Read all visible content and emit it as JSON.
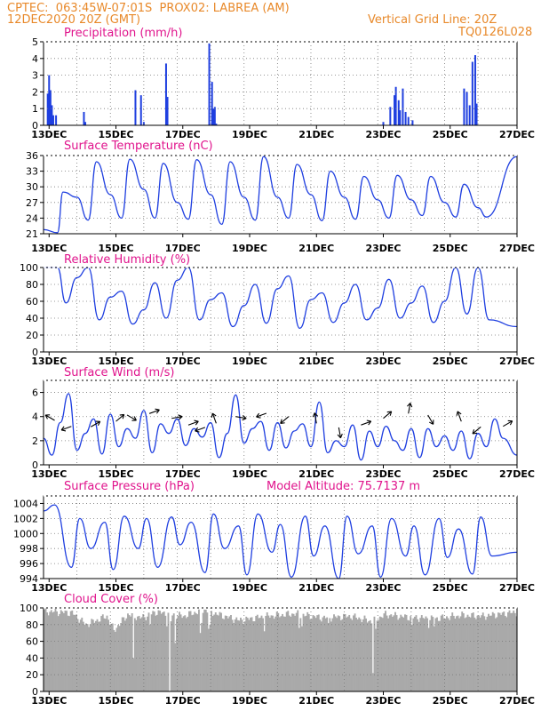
{
  "header": {
    "line1": "CPTEC:  063:45W-07:01S  PROX02: LABREA (AM)",
    "line2": "12DEC2020 20Z (GMT)",
    "grid_note": "Vertical Grid Line: 20Z",
    "code": "TQ0126L028"
  },
  "colors": {
    "header": "#e8892a",
    "title": "#e0138c",
    "series": "#1f3fe0",
    "cloud": "#a9a9a9"
  },
  "x_ticks": [
    "13DEC",
    "15DEC",
    "17DEC",
    "19DEC",
    "21DEC",
    "23DEC",
    "25DEC",
    "27DEC"
  ],
  "model_altitude": "Model Altitude: 75.7137 m",
  "chart_data": [
    {
      "id": "precip",
      "type": "bar",
      "title": "Precipitation (mm/h)",
      "ylim": [
        0,
        5
      ],
      "yticks": [
        "0",
        "1",
        "2",
        "3",
        "4",
        "5"
      ],
      "x_range": [
        "12DEC2020 20Z",
        "27DEC2020 00Z"
      ],
      "x_hours_from_start": [
        3,
        4,
        5,
        6,
        7,
        9,
        29,
        30,
        66,
        70,
        72,
        88,
        89,
        119,
        121,
        122,
        123,
        124,
        244,
        249,
        252,
        253,
        255,
        256,
        258,
        260,
        262,
        265,
        302,
        304,
        306,
        308,
        310,
        311
      ],
      "values": [
        1.9,
        3.0,
        2.1,
        1.2,
        0.6,
        0.6,
        0.8,
        0.2,
        2.1,
        1.8,
        0.2,
        3.7,
        1.7,
        4.9,
        2.6,
        1.0,
        1.1,
        0.1,
        0.2,
        1.1,
        1.8,
        2.3,
        1.5,
        0.9,
        2.2,
        0.8,
        0.5,
        0.3,
        2.2,
        2.0,
        1.2,
        3.8,
        4.2,
        1.3
      ]
    },
    {
      "id": "temp",
      "type": "line",
      "title": "Surface Temperature (nC)",
      "ylim": [
        21,
        36
      ],
      "yticks": [
        "21",
        "24",
        "27",
        "30",
        "33",
        "36"
      ],
      "x_range": [
        "12DEC2020 20Z",
        "27DEC2020 00Z"
      ],
      "x_hours_from_start": [
        0,
        10,
        14,
        24,
        32,
        38,
        48,
        56,
        62,
        72,
        80,
        86,
        96,
        104,
        110,
        120,
        128,
        134,
        144,
        152,
        158,
        168,
        176,
        182,
        192,
        200,
        206,
        216,
        224,
        230,
        240,
        248,
        254,
        264,
        272,
        278,
        288,
        296,
        302,
        312,
        318,
        340
      ],
      "values": [
        21.8,
        21.2,
        29.0,
        28.0,
        23.6,
        34.8,
        28.5,
        24.0,
        35.3,
        29.5,
        24.0,
        34.5,
        27.0,
        23.8,
        35.2,
        28.5,
        22.8,
        34.8,
        28.0,
        23.6,
        35.8,
        28.0,
        24.0,
        34.3,
        28.5,
        23.5,
        33.0,
        28.0,
        23.8,
        32.0,
        27.5,
        24.0,
        32.2,
        27.5,
        24.5,
        32.0,
        27.0,
        24.2,
        30.5,
        26.0,
        24.2,
        35.8
      ]
    },
    {
      "id": "rh",
      "type": "line",
      "title": "Relative Humidity (%)",
      "ylim": [
        0,
        100
      ],
      "yticks": [
        "0",
        "20",
        "40",
        "60",
        "80",
        "100"
      ],
      "x_range": [
        "12DEC2020 20Z",
        "27DEC2020 00Z"
      ],
      "x_hours_from_start": [
        0,
        10,
        16,
        24,
        32,
        40,
        48,
        56,
        64,
        72,
        80,
        88,
        96,
        104,
        112,
        120,
        128,
        136,
        144,
        152,
        160,
        168,
        176,
        184,
        192,
        200,
        208,
        216,
        224,
        232,
        240,
        248,
        256,
        264,
        272,
        280,
        288,
        296,
        304,
        312,
        320,
        340
      ],
      "values": [
        100,
        100,
        58,
        88,
        100,
        38,
        65,
        72,
        33,
        50,
        82,
        40,
        85,
        100,
        38,
        62,
        70,
        30,
        55,
        80,
        34,
        75,
        90,
        28,
        62,
        70,
        35,
        58,
        80,
        38,
        52,
        86,
        40,
        58,
        78,
        35,
        60,
        100,
        45,
        100,
        38,
        30
      ]
    },
    {
      "id": "wind",
      "type": "line",
      "title": "Surface Wind (m/s)",
      "ylim": [
        0,
        7
      ],
      "yticks": [
        "0",
        "2",
        "4",
        "6"
      ],
      "x_range": [
        "12DEC2020 20Z",
        "27DEC2020 00Z"
      ],
      "x_hours_from_start": [
        0,
        6,
        12,
        18,
        24,
        30,
        36,
        42,
        48,
        54,
        60,
        66,
        72,
        78,
        84,
        90,
        96,
        102,
        108,
        114,
        120,
        126,
        132,
        138,
        144,
        150,
        156,
        162,
        168,
        174,
        180,
        186,
        192,
        198,
        204,
        210,
        216,
        222,
        228,
        234,
        240,
        246,
        252,
        258,
        264,
        270,
        276,
        282,
        288,
        294,
        300,
        306,
        312,
        318,
        324,
        330,
        340
      ],
      "values": [
        2.2,
        0.8,
        3.5,
        5.9,
        1.2,
        2.6,
        3.8,
        0.9,
        4.2,
        1.5,
        3.0,
        2.2,
        4.5,
        1.0,
        3.4,
        2.6,
        3.8,
        1.6,
        3.0,
        2.3,
        3.5,
        0.6,
        2.6,
        5.8,
        1.8,
        3.0,
        3.6,
        1.2,
        3.5,
        1.4,
        2.8,
        3.4,
        1.5,
        5.2,
        1.0,
        2.0,
        1.5,
        3.3,
        0.4,
        2.8,
        1.5,
        3.2,
        2.0,
        1.2,
        3.0,
        0.6,
        3.0,
        1.5,
        2.4,
        1.2,
        2.8,
        0.5,
        2.6,
        1.5,
        3.8,
        2.2,
        0.8
      ]
    },
    {
      "id": "pres",
      "type": "line",
      "title": "Surface Pressure (hPa)",
      "ylim": [
        994,
        1005
      ],
      "yticks": [
        "994",
        "996",
        "998",
        "1000",
        "1002",
        "1004"
      ],
      "x_range": [
        "12DEC2020 20Z",
        "27DEC2020 00Z"
      ],
      "x_hours_from_start": [
        0,
        8,
        20,
        26,
        34,
        44,
        50,
        58,
        68,
        74,
        82,
        92,
        98,
        106,
        116,
        122,
        130,
        140,
        146,
        154,
        164,
        170,
        178,
        188,
        194,
        202,
        212,
        218,
        226,
        236,
        242,
        250,
        260,
        266,
        274,
        284,
        290,
        298,
        308,
        314,
        322,
        340
      ],
      "values": [
        1003.0,
        1003.8,
        995.5,
        1002.0,
        998.0,
        1001.5,
        995.2,
        1002.3,
        998.0,
        1002.0,
        995.5,
        1002.2,
        998.5,
        1001.5,
        994.8,
        1002.6,
        998.0,
        1001.0,
        994.5,
        1002.6,
        997.5,
        1001.2,
        994.2,
        1002.3,
        997.0,
        1001.0,
        994.0,
        1002.3,
        997.3,
        1001.0,
        994.2,
        1002.0,
        997.0,
        1001.0,
        994.5,
        1002.0,
        996.8,
        1000.6,
        994.6,
        1002.2,
        997.0,
        997.5
      ]
    },
    {
      "id": "cloud",
      "type": "bar",
      "title": "Cloud Cover (%)",
      "ylim": [
        0,
        100
      ],
      "yticks": [
        "0",
        "20",
        "40",
        "60",
        "80",
        "100"
      ],
      "x_range": [
        "12DEC2020 20Z",
        "27DEC2020 00Z"
      ],
      "profile_hours": [
        0,
        20,
        30,
        45,
        50,
        60,
        70,
        80,
        100,
        115,
        125,
        140,
        160,
        180,
        200,
        220,
        235,
        245,
        260,
        280,
        300,
        315,
        325,
        340
      ],
      "profile_values": [
        96,
        94,
        80,
        90,
        73,
        92,
        88,
        95,
        90,
        98,
        92,
        85,
        90,
        93,
        88,
        90,
        84,
        92,
        89,
        87,
        91,
        90,
        92,
        95
      ],
      "dips_hours": [
        64,
        76,
        88,
        90,
        91,
        94,
        112,
        113,
        118,
        119,
        158,
        183,
        185,
        204,
        236,
        238,
        264,
        276,
        280
      ],
      "dips_values": [
        40,
        80,
        78,
        0,
        84,
        58,
        70,
        82,
        75,
        80,
        72,
        76,
        78,
        82,
        22,
        75,
        80,
        76,
        78
      ]
    }
  ]
}
